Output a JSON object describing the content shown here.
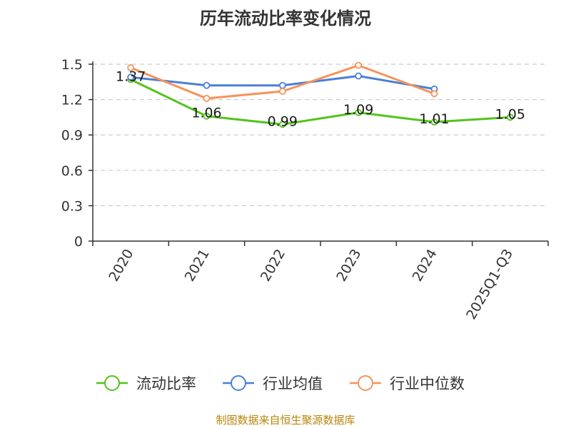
{
  "chart_data": {
    "type": "line",
    "title": "历年流动比率变化情况",
    "categories": [
      "2020",
      "2021",
      "2022",
      "2023",
      "2024",
      "2025Q1-Q3"
    ],
    "ylim": [
      0,
      1.5
    ],
    "yticks": [
      "0",
      "0.3",
      "0.6",
      "0.9",
      "1.2",
      "1.5"
    ],
    "grid": true,
    "legend_position": "bottom",
    "series": [
      {
        "name": "流动比率",
        "color": "#52c41a",
        "values": [
          1.37,
          1.06,
          0.99,
          1.09,
          1.01,
          1.05
        ],
        "labels": [
          "1.37",
          "1.06",
          "0.99",
          "1.09",
          "1.01",
          "1.05"
        ]
      },
      {
        "name": "行业均值",
        "color": "#4a7fd9",
        "values": [
          1.39,
          1.32,
          1.32,
          1.4,
          1.29,
          null
        ]
      },
      {
        "name": "行业中位数",
        "color": "#f5935a",
        "values": [
          1.47,
          1.21,
          1.27,
          1.49,
          1.25,
          null
        ]
      }
    ]
  },
  "footer": {
    "source": "制图数据来自恒生聚源数据库"
  }
}
